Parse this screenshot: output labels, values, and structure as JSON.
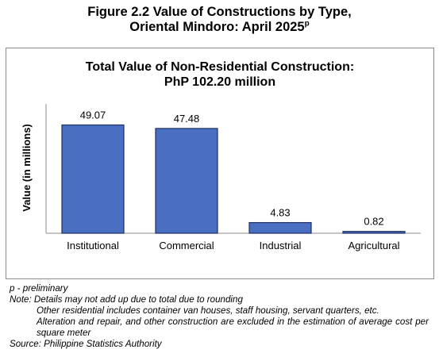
{
  "figure": {
    "title_line1": "Figure 2.2 Value of Constructions by Type,",
    "title_line2": "Oriental Mindoro: April 2025",
    "title_sup": "p"
  },
  "chart_data": {
    "type": "bar",
    "title_line1": "Total Value of Non-Residential Construction:",
    "title_line2": "PhP 102.20 million",
    "categories": [
      "Institutional",
      "Commercial",
      "Industrial",
      "Agricultural"
    ],
    "values": [
      49.07,
      47.48,
      4.83,
      0.82
    ],
    "value_labels": [
      "49.07",
      "47.48",
      "4.83",
      "0.82"
    ],
    "xlabel": "",
    "ylabel": "Value (in millions)",
    "ylim": [
      0,
      55
    ],
    "bar_color": "#4a6fc2",
    "bar_border": "#1f2f63",
    "grid": false,
    "legend": "none"
  },
  "notes": {
    "line1": "p - preliminary",
    "line2": "Note: Details may not add up due to total due to rounding",
    "line3": "Other residential includes container van houses, staff housing, servant quarters, etc.",
    "line4": "Alteration and repair, and other construction are excluded in the estimation of average cost per square meter",
    "line5": "Source: Philippine Statistics Authority"
  }
}
